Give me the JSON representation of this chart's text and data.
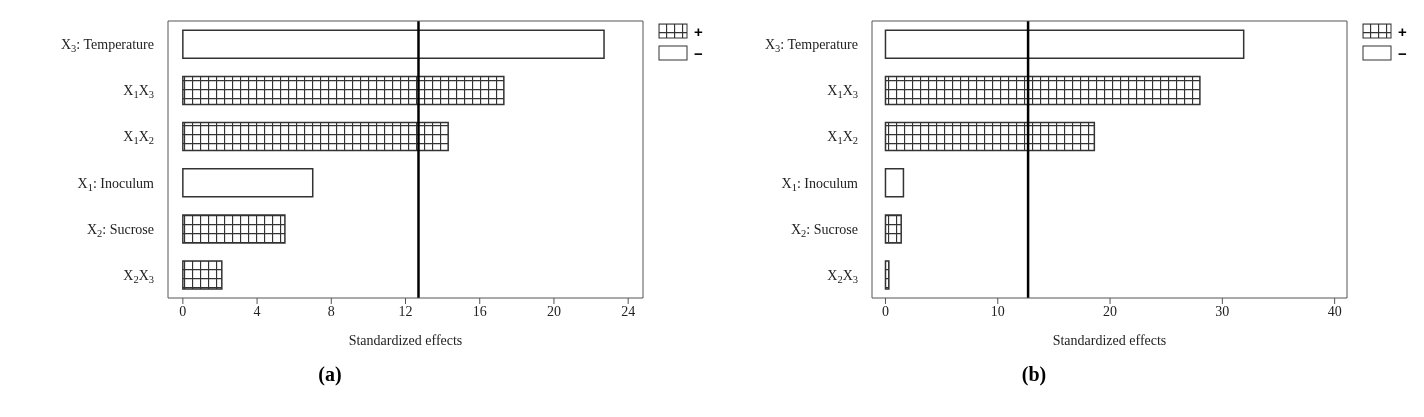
{
  "chart_data": [
    {
      "type": "bar",
      "orientation": "horizontal",
      "stacked": true,
      "title": "(a)",
      "xlabel": "Standardized effects",
      "categories": [
        "X$_{3}$: Temperature",
        "X$_{1}$X$_{3}$",
        "X$_{1}$X$_{2}$",
        "X$_{1}$: Inoculum",
        "X$_{2}$: Sucrose",
        "X$_{2}$X$_{3}$"
      ],
      "series": [
        {
          "name": "+",
          "color": "#333333",
          "values": [
            null,
            17.3,
            14.3,
            null,
            5.5,
            2.1
          ]
        },
        {
          "name": "−",
          "color": "#ffffff",
          "values": [
            22.7,
            null,
            null,
            7.0,
            null,
            null
          ]
        }
      ],
      "xlim": [
        -0.8,
        24.8
      ],
      "xticks": [
        0,
        4,
        8,
        12,
        16,
        20,
        24
      ],
      "ref_lines": [
        {
          "axis": "x",
          "value": 12.7,
          "color": "#000000"
        }
      ],
      "legend": "top right",
      "grid": false
    },
    {
      "type": "bar",
      "orientation": "horizontal",
      "stacked": true,
      "title": "(b)",
      "xlabel": "Standardized effects",
      "categories": [
        "X$_{3}$: Temperature",
        "X$_{1}$X$_{3}$",
        "X$_{1}$X$_{2}$",
        "X$_{1}$: Inoculum",
        "X$_{2}$: Sucrose",
        "X$_{2}$X$_{3}$"
      ],
      "series": [
        {
          "name": "+",
          "color": "#333333",
          "values": [
            null,
            28.0,
            18.6,
            null,
            1.4,
            0.3
          ]
        },
        {
          "name": "−",
          "color": "#ffffff",
          "values": [
            31.9,
            null,
            null,
            1.6,
            null,
            null
          ]
        }
      ],
      "xlim": [
        -1.2,
        41.1
      ],
      "xticks": [
        0,
        10,
        20,
        30,
        40
      ],
      "ref_lines": [
        {
          "axis": "x",
          "value": 12.7,
          "color": "#000000"
        }
      ],
      "legend": "top right",
      "grid": false
    }
  ]
}
